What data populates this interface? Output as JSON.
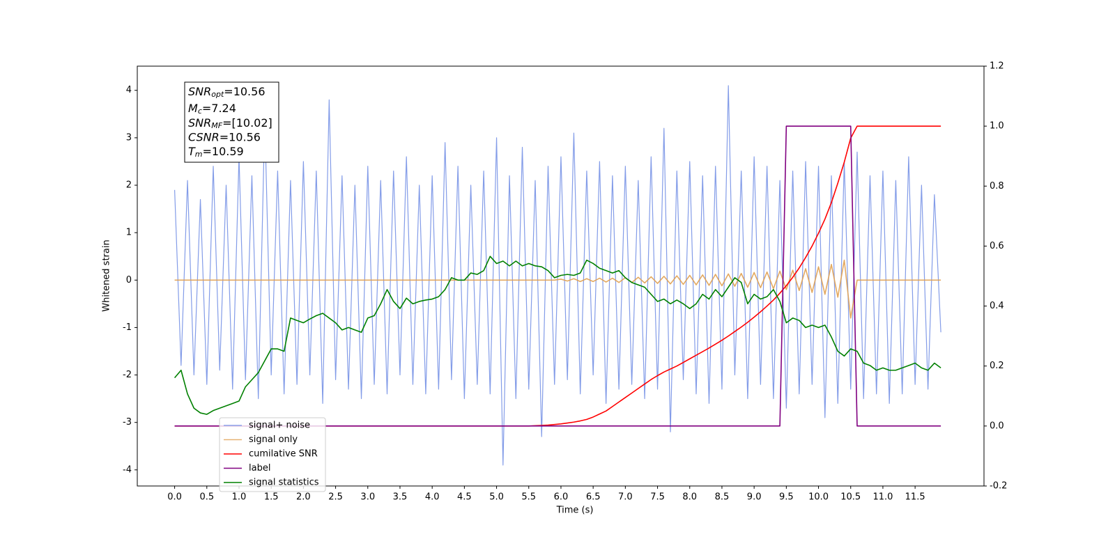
{
  "chart_data": {
    "type": "line",
    "x_label": "Time (s)",
    "y_label": "Whitened strain",
    "xlim": [
      -0.58,
      12.57
    ],
    "ylim": [
      -4.34,
      4.51
    ],
    "y2lim": [
      -0.2,
      1.2
    ],
    "xticks": [
      {
        "value": 0,
        "label": "0.0"
      },
      0.5,
      {
        "value": 1,
        "label": "1.0"
      },
      1.5,
      {
        "value": 2,
        "label": "2.0"
      },
      2.5,
      {
        "value": 3,
        "label": "3.0"
      },
      3.5,
      {
        "value": 4,
        "label": "4.0"
      },
      4.5,
      {
        "value": 5,
        "label": "5.0"
      },
      5.5,
      {
        "value": 6,
        "label": "6.0"
      },
      6.5,
      {
        "value": 7,
        "label": "7.0"
      },
      7.5,
      {
        "value": 8,
        "label": "8.0"
      },
      8.5,
      {
        "value": 9,
        "label": "9.0"
      },
      9.5,
      {
        "value": 10,
        "label": "10.0"
      },
      10.5,
      {
        "value": 11,
        "label": "11.0"
      },
      11.5
    ],
    "yticks": [
      -4,
      -3,
      -2,
      -1,
      0,
      1,
      2,
      3,
      4
    ],
    "y2ticks": [
      -0.2,
      {
        "value": 0,
        "label": "0.0"
      },
      0.2,
      0.4,
      0.6,
      0.8,
      {
        "value": 1,
        "label": "1.0"
      },
      1.2
    ],
    "legend": "lower left",
    "x": [
      0,
      0.1,
      0.2,
      0.3,
      0.4,
      0.5,
      0.6,
      0.7,
      0.8,
      0.9,
      1,
      1.1,
      1.2,
      1.3,
      1.4,
      1.5,
      1.6,
      1.7,
      1.8,
      1.9,
      2,
      2.1,
      2.2,
      2.3,
      2.4,
      2.5,
      2.6,
      2.7,
      2.8,
      2.9,
      3,
      3.1,
      3.2,
      3.3,
      3.4,
      3.5,
      3.6,
      3.7,
      3.8,
      3.9,
      4,
      4.1,
      4.2,
      4.3,
      4.4,
      4.5,
      4.6,
      4.7,
      4.8,
      4.9,
      5,
      5.1,
      5.2,
      5.3,
      5.4,
      5.5,
      5.6,
      5.7,
      5.8,
      5.9,
      6,
      6.1,
      6.2,
      6.3,
      6.4,
      6.5,
      6.6,
      6.7,
      6.8,
      6.9,
      7,
      7.1,
      7.2,
      7.3,
      7.4,
      7.5,
      7.6,
      7.7,
      7.8,
      7.9,
      8,
      8.1,
      8.2,
      8.3,
      8.4,
      8.5,
      8.6,
      8.7,
      8.8,
      8.9,
      9,
      9.1,
      9.2,
      9.3,
      9.4,
      9.5,
      9.6,
      9.7,
      9.8,
      9.9,
      10,
      10.1,
      10.2,
      10.3,
      10.4,
      10.5,
      10.6,
      10.7,
      10.8,
      10.9,
      11,
      11.1,
      11.2,
      11.3,
      11.4,
      11.5,
      11.6,
      11.7,
      11.8,
      11.9
    ],
    "series": [
      {
        "name": "signal+ noise",
        "color": "#7591e6",
        "axis": "y",
        "values": [
          1.9,
          -1.8,
          2.1,
          -2.0,
          1.7,
          -2.2,
          2.4,
          -1.9,
          2.0,
          -2.3,
          2.6,
          -2.1,
          2.2,
          -2.5,
          3.4,
          -2.0,
          2.3,
          -2.4,
          2.1,
          -2.2,
          2.5,
          -2.0,
          2.3,
          -2.6,
          3.8,
          -2.1,
          2.2,
          -2.3,
          2.0,
          -2.5,
          2.4,
          -2.2,
          2.1,
          -2.4,
          2.3,
          -2.0,
          2.6,
          -2.2,
          2.0,
          -2.4,
          2.2,
          -2.3,
          2.9,
          -2.1,
          2.4,
          -2.5,
          2.0,
          -2.2,
          2.3,
          -2.4,
          3.0,
          -3.9,
          2.2,
          -2.5,
          2.8,
          -2.3,
          2.1,
          -3.3,
          2.4,
          -2.2,
          2.6,
          -2.1,
          3.1,
          -2.4,
          2.3,
          -2.0,
          2.5,
          -2.6,
          2.2,
          -2.3,
          2.4,
          -2.2,
          2.1,
          -2.5,
          2.6,
          -2.3,
          3.2,
          -3.2,
          2.3,
          -2.1,
          2.5,
          -2.4,
          2.2,
          -2.6,
          2.4,
          -2.3,
          4.1,
          -2.0,
          2.3,
          -2.5,
          2.6,
          -2.2,
          2.4,
          -2.5,
          2.1,
          -2.7,
          2.3,
          -2.4,
          2.5,
          -2.2,
          2.4,
          -2.9,
          2.2,
          -2.6,
          2.5,
          -2.3,
          2.7,
          -2.5,
          2.2,
          -2.4,
          2.3,
          -2.6,
          2.1,
          -2.4,
          2.6,
          -2.2,
          2.0,
          -2.3,
          1.8,
          -1.1
        ]
      },
      {
        "name": "signal only",
        "color": "#e0a050",
        "axis": "y",
        "values": [
          0,
          0,
          0,
          0,
          0,
          0,
          0,
          0,
          0,
          0,
          0,
          0,
          0,
          0,
          0,
          0,
          0,
          0,
          0,
          0,
          0,
          0,
          0,
          0,
          0,
          0,
          0,
          0,
          0,
          0,
          0,
          0,
          0,
          0,
          0,
          0,
          0,
          0,
          0,
          0,
          0,
          0,
          0,
          0,
          0,
          0,
          0,
          0,
          0,
          0,
          0,
          0,
          0,
          0,
          0,
          0,
          0,
          0,
          0,
          0,
          0.02,
          -0.02,
          0.03,
          -0.03,
          0.03,
          -0.03,
          0.04,
          -0.04,
          0.04,
          -0.05,
          0.05,
          -0.05,
          0.06,
          -0.06,
          0.07,
          -0.07,
          0.08,
          -0.08,
          0.09,
          -0.09,
          0.1,
          -0.1,
          0.11,
          -0.11,
          0.12,
          -0.12,
          0.13,
          -0.13,
          0.14,
          -0.15,
          0.16,
          -0.16,
          0.17,
          -0.18,
          0.19,
          -0.2,
          0.21,
          -0.22,
          0.24,
          -0.26,
          0.28,
          -0.3,
          0.33,
          -0.36,
          0.42,
          -0.8,
          0,
          0,
          0,
          0,
          0,
          0,
          0,
          0,
          0,
          0,
          0,
          0,
          0,
          0
        ]
      },
      {
        "name": "cumilative SNR",
        "color": "#ff0000",
        "axis": "y2",
        "values": [
          0,
          0,
          0,
          0,
          0,
          0,
          0,
          0,
          0,
          0,
          0,
          0,
          0,
          0,
          0,
          0,
          0,
          0,
          0,
          0,
          0,
          0,
          0,
          0,
          0,
          0,
          0,
          0,
          0,
          0,
          0,
          0,
          0,
          0,
          0,
          0,
          0,
          0,
          0,
          0,
          0,
          0,
          0,
          0,
          0,
          0,
          0,
          0,
          0,
          0,
          0,
          0,
          0,
          0,
          0,
          0,
          0.001,
          0.002,
          0.003,
          0.005,
          0.007,
          0.01,
          0.013,
          0.017,
          0.022,
          0.03,
          0.04,
          0.05,
          0.065,
          0.08,
          0.095,
          0.11,
          0.125,
          0.14,
          0.155,
          0.168,
          0.18,
          0.19,
          0.2,
          0.212,
          0.224,
          0.236,
          0.248,
          0.26,
          0.273,
          0.286,
          0.3,
          0.315,
          0.33,
          0.346,
          0.363,
          0.381,
          0.4,
          0.42,
          0.443,
          0.468,
          0.496,
          0.527,
          0.562,
          0.6,
          0.643,
          0.69,
          0.745,
          0.81,
          0.88,
          0.96,
          1,
          1,
          1,
          1,
          1,
          1,
          1,
          1,
          1,
          1,
          1,
          1,
          1,
          1
        ]
      },
      {
        "name": "label",
        "color": "#800080",
        "axis": "y2",
        "values": [
          0,
          0,
          0,
          0,
          0,
          0,
          0,
          0,
          0,
          0,
          0,
          0,
          0,
          0,
          0,
          0,
          0,
          0,
          0,
          0,
          0,
          0,
          0,
          0,
          0,
          0,
          0,
          0,
          0,
          0,
          0,
          0,
          0,
          0,
          0,
          0,
          0,
          0,
          0,
          0,
          0,
          0,
          0,
          0,
          0,
          0,
          0,
          0,
          0,
          0,
          0,
          0,
          0,
          0,
          0,
          0,
          0,
          0,
          0,
          0,
          0,
          0,
          0,
          0,
          0,
          0,
          0,
          0,
          0,
          0,
          0,
          0,
          0,
          0,
          0,
          0,
          0,
          0,
          0,
          0,
          0,
          0,
          0,
          0,
          0,
          0,
          0,
          0,
          0,
          0,
          0,
          0,
          0,
          0,
          0,
          1,
          1,
          1,
          1,
          1,
          1,
          1,
          1,
          1,
          1,
          1,
          0,
          0,
          0,
          0,
          0,
          0,
          0,
          0,
          0,
          0,
          0,
          0,
          0,
          0
        ]
      },
      {
        "name": "signal statistics",
        "color": "#008000",
        "axis": "y",
        "values": [
          -2.06,
          -1.9,
          -2.4,
          -2.7,
          -2.8,
          -2.83,
          -2.75,
          -2.7,
          -2.65,
          -2.6,
          -2.55,
          -2.25,
          -2.1,
          -1.95,
          -1.7,
          -1.45,
          -1.45,
          -1.5,
          -0.8,
          -0.85,
          -0.9,
          -0.82,
          -0.75,
          -0.7,
          -0.8,
          -0.9,
          -1.05,
          -1.0,
          -1.05,
          -1.1,
          -0.8,
          -0.75,
          -0.5,
          -0.2,
          -0.45,
          -0.6,
          -0.38,
          -0.5,
          -0.45,
          -0.42,
          -0.4,
          -0.35,
          -0.2,
          0.05,
          0.0,
          0.0,
          0.15,
          0.12,
          0.2,
          0.5,
          0.35,
          0.4,
          0.3,
          0.4,
          0.3,
          0.35,
          0.3,
          0.28,
          0.2,
          0.05,
          0.1,
          0.12,
          0.1,
          0.15,
          0.42,
          0.35,
          0.25,
          0.2,
          0.15,
          0.2,
          0.05,
          -0.05,
          -0.1,
          -0.15,
          -0.3,
          -0.45,
          -0.4,
          -0.5,
          -0.42,
          -0.5,
          -0.6,
          -0.5,
          -0.3,
          -0.4,
          -0.2,
          -0.35,
          -0.15,
          0.05,
          -0.05,
          -0.5,
          -0.3,
          -0.4,
          -0.35,
          -0.2,
          -0.45,
          -0.9,
          -0.8,
          -0.85,
          -1.0,
          -0.95,
          -1.0,
          -0.95,
          -1.2,
          -1.5,
          -1.6,
          -1.45,
          -1.5,
          -1.75,
          -1.8,
          -1.9,
          -1.85,
          -1.9,
          -1.9,
          -1.85,
          -1.8,
          -1.75,
          -1.85,
          -1.9,
          -1.75,
          -1.85
        ]
      }
    ],
    "annotations": [
      {
        "text": "SNR",
        "sub": "opt",
        "suffix": "=10.56"
      },
      {
        "text": "M",
        "sub": "c",
        "suffix": "=7.24"
      },
      {
        "text": "SNR",
        "sub": "MF",
        "suffix": "=[10.02]"
      },
      {
        "text": "CSNR",
        "suffix": "=10.56"
      },
      {
        "text": "T",
        "sub": "m",
        "suffix": "=10.59"
      }
    ]
  }
}
